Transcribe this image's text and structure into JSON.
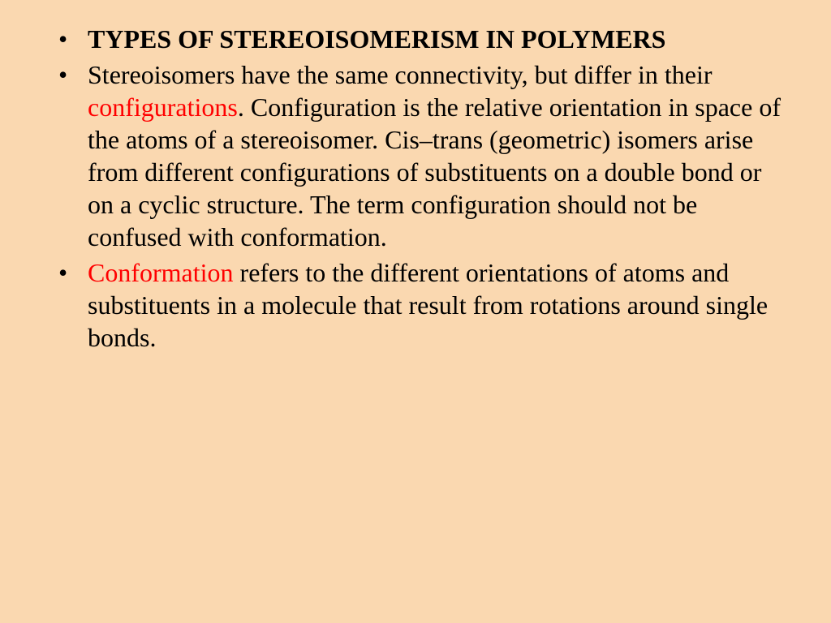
{
  "slide": {
    "background_color": "#fad8b0",
    "text_color": "#000000",
    "highlight_color": "#ff0000",
    "font_family": "Times New Roman",
    "font_size_pt": 24,
    "line_height": 1.25,
    "bullets": [
      {
        "type": "heading",
        "bold": true,
        "segments": [
          {
            "text": "TYPES OF STEREOISOMERISM IN POLYMERS",
            "color": "#000000",
            "bold": true
          }
        ]
      },
      {
        "type": "body",
        "bold": false,
        "segments": [
          {
            "text": "Stereoisomers have the same connectivity, but differ in their ",
            "color": "#000000"
          },
          {
            "text": "configurations",
            "color": "#ff0000"
          },
          {
            "text": ". Configuration is the relative orientation in space of the atoms of a stereoisomer. Cis–trans (geometric) isomers arise from different configurations of substituents on a double bond or on a cyclic structure. The term configuration should not be confused with conformation.",
            "color": "#000000"
          }
        ]
      },
      {
        "type": "body",
        "bold": false,
        "segments": [
          {
            "text": "Conformation",
            "color": "#ff0000"
          },
          {
            "text": " refers to the different orientations of atoms and substituents in a molecule that result from rotations around single bonds.",
            "color": "#000000"
          }
        ]
      }
    ]
  }
}
